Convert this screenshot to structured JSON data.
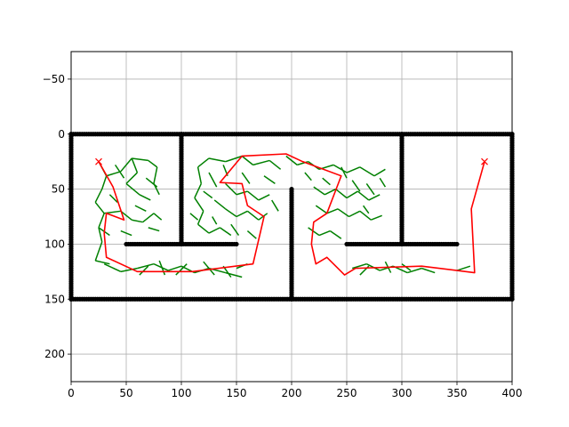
{
  "chart_data": {
    "type": "scatter",
    "title": "",
    "xlabel": "",
    "ylabel": "",
    "xlim": [
      0,
      400
    ],
    "ylim": [
      -75,
      225
    ],
    "y_inverted": true,
    "grid": true,
    "x_ticks": [
      0,
      50,
      100,
      150,
      200,
      250,
      300,
      350,
      400
    ],
    "y_ticks": [
      -50,
      0,
      50,
      100,
      150,
      200
    ],
    "x_tick_labels": [
      "0",
      "50",
      "100",
      "150",
      "200",
      "250",
      "300",
      "350",
      "400"
    ],
    "y_tick_labels": [
      "−50",
      "0",
      "50",
      "100",
      "150",
      "200"
    ],
    "colors": {
      "obstacle": "#000000",
      "tree": "#008000",
      "path": "#ff0000",
      "goal": "#ff0000",
      "grid": "#b0b0b0"
    },
    "obstacles": [
      {
        "name": "top-wall",
        "from": [
          0,
          0
        ],
        "to": [
          400,
          0
        ]
      },
      {
        "name": "bottom-wall",
        "from": [
          0,
          150
        ],
        "to": [
          400,
          150
        ]
      },
      {
        "name": "left-wall",
        "from": [
          0,
          0
        ],
        "to": [
          0,
          150
        ]
      },
      {
        "name": "right-wall",
        "from": [
          400,
          0
        ],
        "to": [
          400,
          150
        ]
      },
      {
        "name": "divider-100",
        "from": [
          100,
          0
        ],
        "to": [
          100,
          100
        ]
      },
      {
        "name": "shelf-left",
        "from": [
          50,
          100
        ],
        "to": [
          150,
          100
        ]
      },
      {
        "name": "divider-200",
        "from": [
          200,
          50
        ],
        "to": [
          200,
          150
        ]
      },
      {
        "name": "divider-300",
        "from": [
          300,
          0
        ],
        "to": [
          300,
          100
        ]
      },
      {
        "name": "shelf-right",
        "from": [
          250,
          100
        ],
        "to": [
          350,
          100
        ]
      }
    ],
    "tree_edges": [
      [
        [
          25,
          25
        ],
        [
          32,
          38
        ]
      ],
      [
        [
          32,
          38
        ],
        [
          28,
          50
        ]
      ],
      [
        [
          32,
          38
        ],
        [
          45,
          34
        ]
      ],
      [
        [
          45,
          34
        ],
        [
          55,
          22
        ]
      ],
      [
        [
          55,
          22
        ],
        [
          70,
          24
        ]
      ],
      [
        [
          70,
          24
        ],
        [
          78,
          30
        ]
      ],
      [
        [
          78,
          30
        ],
        [
          75,
          45
        ]
      ],
      [
        [
          75,
          45
        ],
        [
          80,
          55
        ]
      ],
      [
        [
          55,
          22
        ],
        [
          60,
          35
        ]
      ],
      [
        [
          60,
          35
        ],
        [
          50,
          45
        ]
      ],
      [
        [
          50,
          45
        ],
        [
          62,
          55
        ]
      ],
      [
        [
          62,
          55
        ],
        [
          72,
          60
        ]
      ],
      [
        [
          28,
          50
        ],
        [
          22,
          62
        ]
      ],
      [
        [
          22,
          62
        ],
        [
          30,
          72
        ]
      ],
      [
        [
          30,
          72
        ],
        [
          45,
          70
        ]
      ],
      [
        [
          45,
          70
        ],
        [
          55,
          78
        ]
      ],
      [
        [
          55,
          78
        ],
        [
          65,
          80
        ]
      ],
      [
        [
          65,
          80
        ],
        [
          75,
          72
        ]
      ],
      [
        [
          75,
          72
        ],
        [
          82,
          78
        ]
      ],
      [
        [
          30,
          72
        ],
        [
          25,
          85
        ]
      ],
      [
        [
          25,
          85
        ],
        [
          35,
          92
        ]
      ],
      [
        [
          25,
          85
        ],
        [
          28,
          98
        ]
      ],
      [
        [
          28,
          98
        ],
        [
          22,
          115
        ]
      ],
      [
        [
          22,
          115
        ],
        [
          35,
          118
        ]
      ],
      [
        [
          40,
          28
        ],
        [
          48,
          40
        ]
      ],
      [
        [
          68,
          40
        ],
        [
          78,
          48
        ]
      ],
      [
        [
          35,
          55
        ],
        [
          42,
          62
        ]
      ],
      [
        [
          58,
          65
        ],
        [
          68,
          70
        ]
      ],
      [
        [
          70,
          85
        ],
        [
          80,
          88
        ]
      ],
      [
        [
          45,
          88
        ],
        [
          55,
          92
        ]
      ],
      [
        [
          30,
          118
        ],
        [
          45,
          125
        ]
      ],
      [
        [
          45,
          125
        ],
        [
          60,
          122
        ]
      ],
      [
        [
          60,
          122
        ],
        [
          75,
          118
        ]
      ],
      [
        [
          75,
          118
        ],
        [
          88,
          124
        ]
      ],
      [
        [
          88,
          124
        ],
        [
          100,
          120
        ]
      ],
      [
        [
          100,
          120
        ],
        [
          112,
          126
        ]
      ],
      [
        [
          112,
          126
        ],
        [
          125,
          122
        ]
      ],
      [
        [
          125,
          122
        ],
        [
          140,
          126
        ]
      ],
      [
        [
          140,
          126
        ],
        [
          155,
          130
        ]
      ],
      [
        [
          80,
          115
        ],
        [
          85,
          128
        ]
      ],
      [
        [
          95,
          128
        ],
        [
          105,
          118
        ]
      ],
      [
        [
          120,
          116
        ],
        [
          130,
          128
        ]
      ],
      [
        [
          150,
          122
        ],
        [
          160,
          118
        ]
      ],
      [
        [
          62,
          128
        ],
        [
          70,
          120
        ]
      ],
      [
        [
          138,
          120
        ],
        [
          145,
          130
        ]
      ],
      [
        [
          115,
          30
        ],
        [
          125,
          22
        ]
      ],
      [
        [
          125,
          22
        ],
        [
          140,
          25
        ]
      ],
      [
        [
          140,
          25
        ],
        [
          155,
          20
        ]
      ],
      [
        [
          155,
          20
        ],
        [
          165,
          28
        ]
      ],
      [
        [
          165,
          28
        ],
        [
          180,
          24
        ]
      ],
      [
        [
          180,
          24
        ],
        [
          190,
          32
        ]
      ],
      [
        [
          115,
          30
        ],
        [
          118,
          45
        ]
      ],
      [
        [
          118,
          45
        ],
        [
          112,
          58
        ]
      ],
      [
        [
          112,
          58
        ],
        [
          120,
          70
        ]
      ],
      [
        [
          120,
          70
        ],
        [
          115,
          82
        ]
      ],
      [
        [
          115,
          82
        ],
        [
          125,
          90
        ]
      ],
      [
        [
          125,
          90
        ],
        [
          135,
          85
        ]
      ],
      [
        [
          135,
          85
        ],
        [
          145,
          92
        ]
      ],
      [
        [
          140,
          45
        ],
        [
          150,
          55
        ]
      ],
      [
        [
          150,
          55
        ],
        [
          160,
          52
        ]
      ],
      [
        [
          160,
          52
        ],
        [
          170,
          60
        ]
      ],
      [
        [
          170,
          60
        ],
        [
          180,
          55
        ]
      ],
      [
        [
          130,
          60
        ],
        [
          140,
          68
        ]
      ],
      [
        [
          140,
          68
        ],
        [
          150,
          75
        ]
      ],
      [
        [
          150,
          75
        ],
        [
          160,
          70
        ]
      ],
      [
        [
          160,
          70
        ],
        [
          170,
          78
        ]
      ],
      [
        [
          170,
          78
        ],
        [
          178,
          72
        ]
      ],
      [
        [
          125,
          35
        ],
        [
          132,
          48
        ]
      ],
      [
        [
          155,
          35
        ],
        [
          162,
          45
        ]
      ],
      [
        [
          175,
          38
        ],
        [
          185,
          45
        ]
      ],
      [
        [
          145,
          82
        ],
        [
          152,
          92
        ]
      ],
      [
        [
          160,
          88
        ],
        [
          168,
          95
        ]
      ],
      [
        [
          120,
          52
        ],
        [
          128,
          58
        ]
      ],
      [
        [
          138,
          28
        ],
        [
          142,
          38
        ]
      ],
      [
        [
          182,
          60
        ],
        [
          188,
          70
        ]
      ],
      [
        [
          108,
          72
        ],
        [
          115,
          78
        ]
      ],
      [
        [
          128,
          75
        ],
        [
          132,
          82
        ]
      ],
      [
        [
          195,
          20
        ],
        [
          205,
          28
        ]
      ],
      [
        [
          205,
          28
        ],
        [
          215,
          25
        ]
      ],
      [
        [
          215,
          25
        ],
        [
          225,
          32
        ]
      ],
      [
        [
          225,
          32
        ],
        [
          238,
          28
        ]
      ],
      [
        [
          238,
          28
        ],
        [
          250,
          35
        ]
      ],
      [
        [
          250,
          35
        ],
        [
          262,
          30
        ]
      ],
      [
        [
          262,
          30
        ],
        [
          275,
          38
        ]
      ],
      [
        [
          275,
          38
        ],
        [
          285,
          32
        ]
      ],
      [
        [
          220,
          48
        ],
        [
          230,
          55
        ]
      ],
      [
        [
          230,
          55
        ],
        [
          240,
          50
        ]
      ],
      [
        [
          240,
          50
        ],
        [
          250,
          58
        ]
      ],
      [
        [
          250,
          58
        ],
        [
          260,
          52
        ]
      ],
      [
        [
          260,
          52
        ],
        [
          270,
          60
        ]
      ],
      [
        [
          270,
          60
        ],
        [
          280,
          55
        ]
      ],
      [
        [
          222,
          65
        ],
        [
          232,
          72
        ]
      ],
      [
        [
          232,
          72
        ],
        [
          242,
          68
        ]
      ],
      [
        [
          242,
          68
        ],
        [
          252,
          75
        ]
      ],
      [
        [
          252,
          75
        ],
        [
          262,
          70
        ]
      ],
      [
        [
          262,
          70
        ],
        [
          272,
          78
        ]
      ],
      [
        [
          272,
          78
        ],
        [
          282,
          74
        ]
      ],
      [
        [
          215,
          85
        ],
        [
          225,
          92
        ]
      ],
      [
        [
          225,
          92
        ],
        [
          235,
          88
        ]
      ],
      [
        [
          235,
          88
        ],
        [
          245,
          95
        ]
      ],
      [
        [
          255,
          42
        ],
        [
          262,
          52
        ]
      ],
      [
        [
          268,
          45
        ],
        [
          275,
          55
        ]
      ],
      [
        [
          280,
          40
        ],
        [
          285,
          48
        ]
      ],
      [
        [
          228,
          40
        ],
        [
          235,
          46
        ]
      ],
      [
        [
          265,
          65
        ],
        [
          270,
          72
        ]
      ],
      [
        [
          245,
          30
        ],
        [
          250,
          40
        ]
      ],
      [
        [
          212,
          35
        ],
        [
          218,
          42
        ]
      ],
      [
        [
          255,
          122
        ],
        [
          268,
          118
        ]
      ],
      [
        [
          268,
          118
        ],
        [
          280,
          124
        ]
      ],
      [
        [
          280,
          124
        ],
        [
          292,
          120
        ]
      ],
      [
        [
          292,
          120
        ],
        [
          305,
          126
        ]
      ],
      [
        [
          305,
          126
        ],
        [
          318,
          122
        ]
      ],
      [
        [
          318,
          122
        ],
        [
          330,
          126
        ]
      ],
      [
        [
          262,
          128
        ],
        [
          270,
          120
        ]
      ],
      [
        [
          285,
          116
        ],
        [
          290,
          126
        ]
      ],
      [
        [
          300,
          118
        ],
        [
          308,
          124
        ]
      ],
      [
        [
          350,
          124
        ],
        [
          362,
          120
        ]
      ]
    ],
    "path": [
      [
        25,
        25
      ],
      [
        38,
        48
      ],
      [
        48,
        78
      ],
      [
        32,
        72
      ],
      [
        30,
        90
      ],
      [
        32,
        112
      ],
      [
        60,
        125
      ],
      [
        110,
        125
      ],
      [
        165,
        118
      ],
      [
        175,
        75
      ],
      [
        160,
        65
      ],
      [
        155,
        45
      ],
      [
        135,
        44
      ],
      [
        155,
        20
      ],
      [
        195,
        18
      ],
      [
        210,
        25
      ],
      [
        245,
        38
      ],
      [
        232,
        72
      ],
      [
        220,
        80
      ],
      [
        218,
        100
      ],
      [
        222,
        118
      ],
      [
        232,
        112
      ],
      [
        248,
        128
      ],
      [
        258,
        122
      ],
      [
        318,
        120
      ],
      [
        366,
        126
      ],
      [
        363,
        68
      ],
      [
        375,
        25
      ]
    ],
    "start": [
      25,
      25
    ],
    "goal": [
      375,
      25
    ]
  }
}
